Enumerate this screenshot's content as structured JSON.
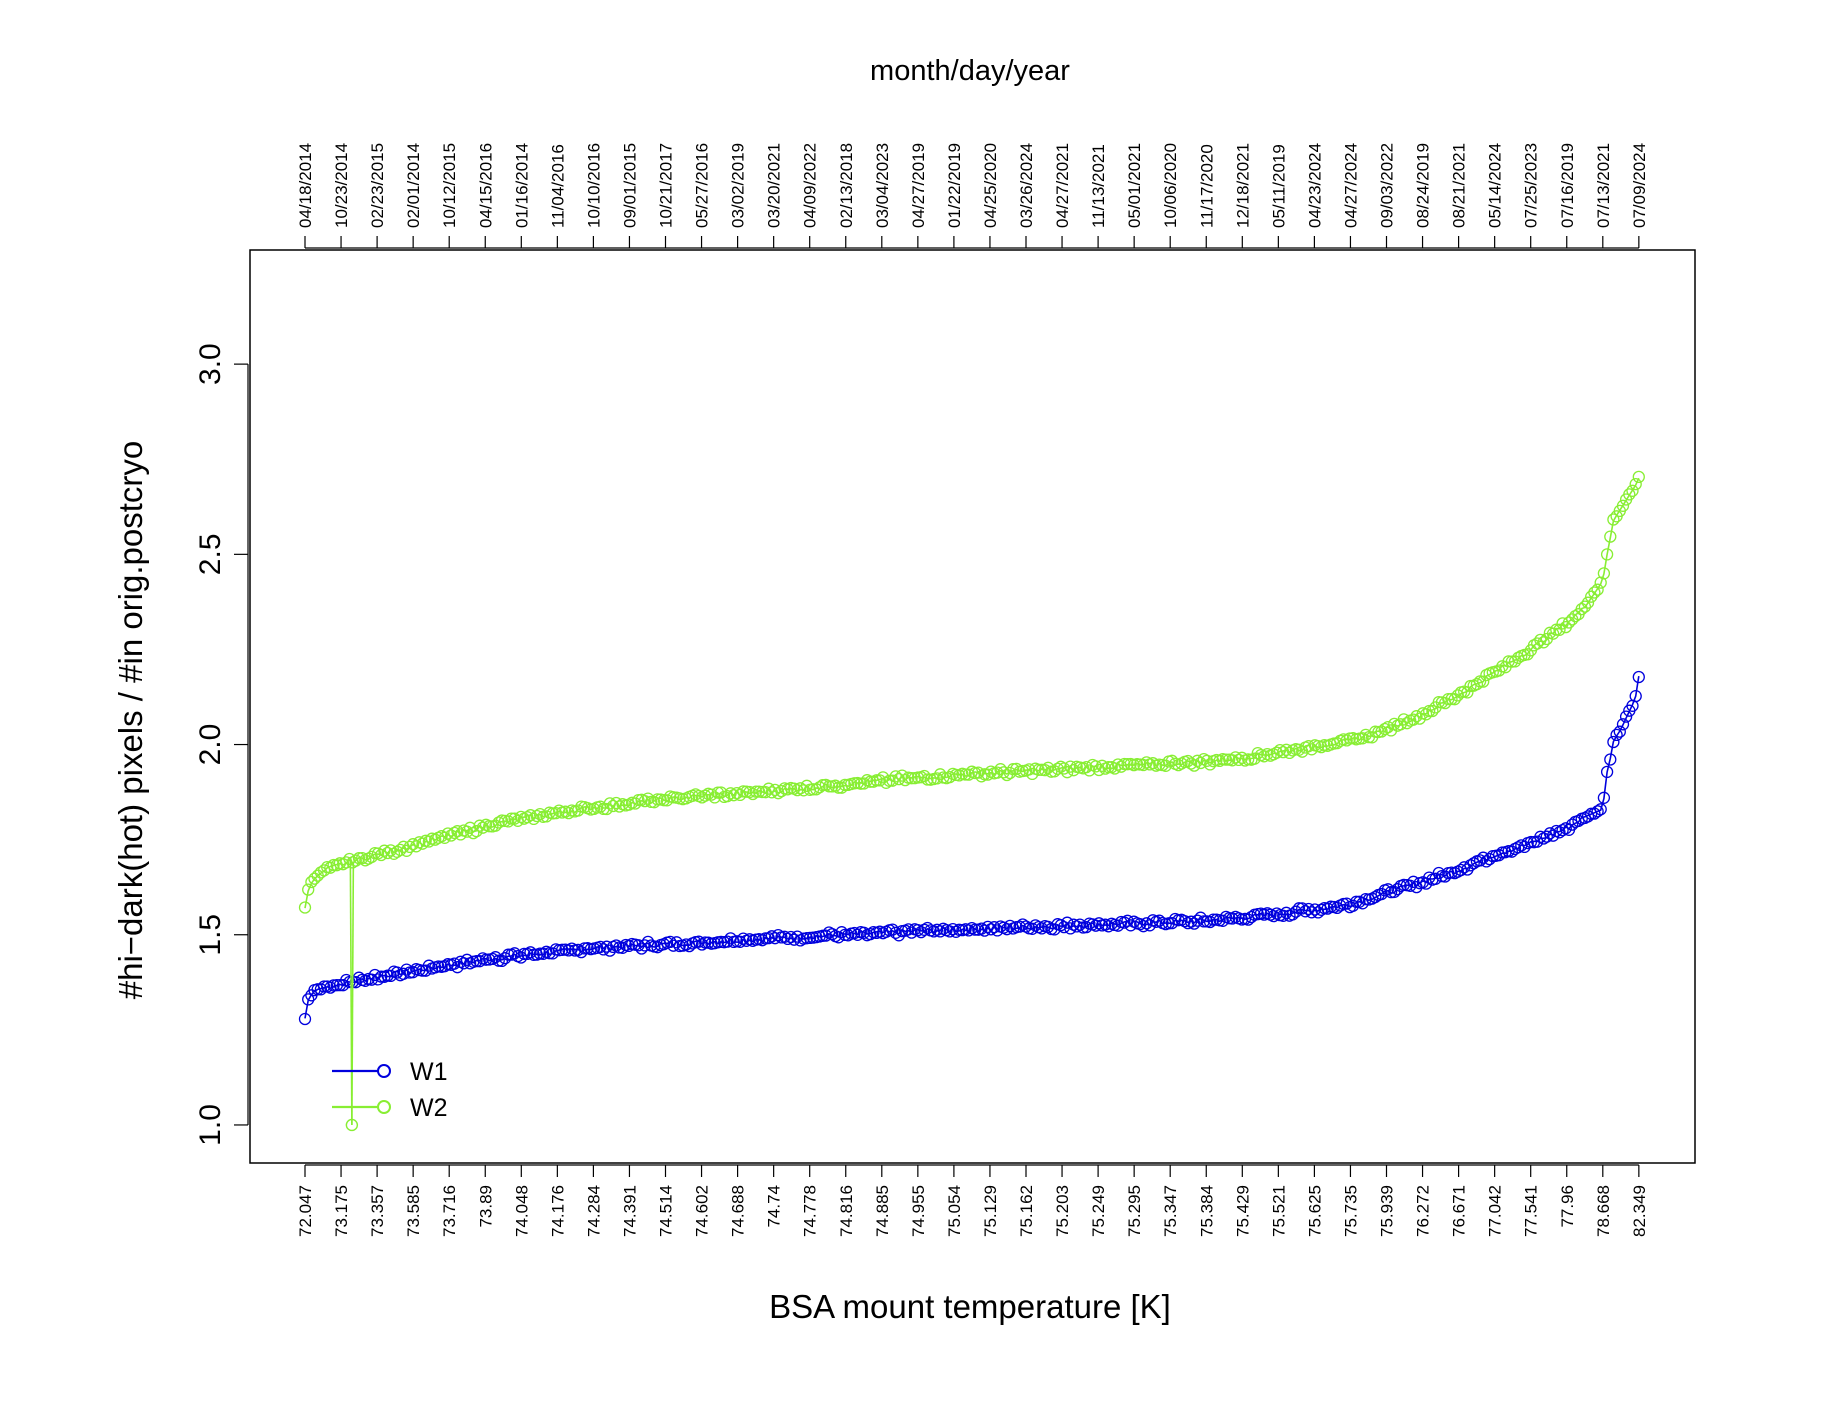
{
  "chart_data": {
    "type": "line",
    "top_axis_label": "month/day/year",
    "xlabel": "BSA mount temperature [K]",
    "ylabel": "#hi−dark(hot) pixels / #in orig.postcryo",
    "ylim": [
      0.9,
      3.3
    ],
    "yticks": [
      "1.0",
      "1.5",
      "2.0",
      "2.5",
      "3.0"
    ],
    "x_tick_labels": [
      "72.047",
      "73.175",
      "73.357",
      "73.585",
      "73.716",
      "73.89",
      "74.048",
      "74.176",
      "74.284",
      "74.391",
      "74.514",
      "74.602",
      "74.688",
      "74.74",
      "74.778",
      "74.816",
      "74.885",
      "74.955",
      "75.054",
      "75.129",
      "75.162",
      "75.203",
      "75.249",
      "75.295",
      "75.347",
      "75.384",
      "75.429",
      "75.521",
      "75.625",
      "75.735",
      "75.939",
      "76.272",
      "76.671",
      "77.042",
      "77.541",
      "77.96",
      "78.668",
      "82.349"
    ],
    "top_tick_labels": [
      "04/18/2014",
      "10/23/2014",
      "02/23/2015",
      "02/01/2014",
      "10/12/2015",
      "04/15/2016",
      "01/16/2014",
      "11/04/2016",
      "10/10/2016",
      "09/01/2015",
      "10/21/2017",
      "05/27/2016",
      "03/02/2019",
      "03/20/2021",
      "04/09/2022",
      "02/13/2018",
      "03/04/2023",
      "04/27/2019",
      "01/22/2019",
      "04/25/2020",
      "03/26/2024",
      "04/27/2021",
      "11/13/2021",
      "05/01/2021",
      "10/06/2020",
      "11/17/2020",
      "12/18/2021",
      "05/11/2019",
      "04/23/2024",
      "04/27/2024",
      "09/03/2022",
      "08/24/2019",
      "08/21/2021",
      "05/14/2024",
      "07/25/2023",
      "07/16/2019",
      "07/13/2021",
      "07/09/2024"
    ],
    "legend": {
      "placement": "bottom-left"
    },
    "grid": false,
    "series": [
      {
        "name": "W1",
        "color": "#0000dd",
        "anchors": [
          [
            0,
            1.28
          ],
          [
            0.05,
            1.32
          ],
          [
            0.15,
            1.34
          ],
          [
            0.3,
            1.355
          ],
          [
            0.5,
            1.36
          ],
          [
            1,
            1.37
          ],
          [
            2,
            1.39
          ],
          [
            3,
            1.405
          ],
          [
            4,
            1.42
          ],
          [
            5,
            1.435
          ],
          [
            6,
            1.445
          ],
          [
            7,
            1.455
          ],
          [
            8,
            1.465
          ],
          [
            9,
            1.47
          ],
          [
            10,
            1.475
          ],
          [
            11,
            1.48
          ],
          [
            12,
            1.485
          ],
          [
            13,
            1.49
          ],
          [
            14,
            1.495
          ],
          [
            15,
            1.5
          ],
          [
            16,
            1.505
          ],
          [
            17,
            1.51
          ],
          [
            18,
            1.513
          ],
          [
            19,
            1.516
          ],
          [
            20,
            1.52
          ],
          [
            21,
            1.523
          ],
          [
            22,
            1.527
          ],
          [
            23,
            1.53
          ],
          [
            24,
            1.533
          ],
          [
            25,
            1.537
          ],
          [
            26,
            1.545
          ],
          [
            27,
            1.555
          ],
          [
            28,
            1.565
          ],
          [
            29,
            1.58
          ],
          [
            30,
            1.61
          ],
          [
            31,
            1.64
          ],
          [
            32,
            1.67
          ],
          [
            33,
            1.71
          ],
          [
            34,
            1.74
          ],
          [
            35,
            1.78
          ],
          [
            35.5,
            1.81
          ],
          [
            36,
            1.83
          ],
          [
            36.1,
            1.92
          ],
          [
            36.2,
            1.96
          ],
          [
            36.3,
            2.01
          ],
          [
            36.5,
            2.04
          ],
          [
            36.7,
            2.08
          ],
          [
            36.9,
            2.12
          ],
          [
            37,
            2.18
          ]
        ]
      },
      {
        "name": "W2",
        "color": "#88ee33",
        "outlier": [
          1.3,
          1.0
        ],
        "anchors": [
          [
            0,
            1.57
          ],
          [
            0.05,
            1.6
          ],
          [
            0.1,
            1.62
          ],
          [
            0.2,
            1.64
          ],
          [
            0.4,
            1.66
          ],
          [
            0.7,
            1.675
          ],
          [
            1,
            1.685
          ],
          [
            2,
            1.71
          ],
          [
            3,
            1.735
          ],
          [
            4,
            1.76
          ],
          [
            5,
            1.785
          ],
          [
            6,
            1.805
          ],
          [
            7,
            1.82
          ],
          [
            8,
            1.835
          ],
          [
            9,
            1.845
          ],
          [
            10,
            1.855
          ],
          [
            11,
            1.865
          ],
          [
            12,
            1.87
          ],
          [
            13,
            1.878
          ],
          [
            14,
            1.886
          ],
          [
            15,
            1.895
          ],
          [
            16,
            1.905
          ],
          [
            17,
            1.913
          ],
          [
            18,
            1.92
          ],
          [
            19,
            1.925
          ],
          [
            20,
            1.93
          ],
          [
            21,
            1.935
          ],
          [
            22,
            1.94
          ],
          [
            23,
            1.945
          ],
          [
            24,
            1.95
          ],
          [
            25,
            1.955
          ],
          [
            26,
            1.965
          ],
          [
            27,
            1.98
          ],
          [
            28,
            1.995
          ],
          [
            29,
            2.01
          ],
          [
            30,
            2.04
          ],
          [
            31,
            2.08
          ],
          [
            32,
            2.13
          ],
          [
            33,
            2.19
          ],
          [
            34,
            2.25
          ],
          [
            35,
            2.32
          ],
          [
            35.5,
            2.36
          ],
          [
            36,
            2.43
          ],
          [
            36.1,
            2.49
          ],
          [
            36.2,
            2.54
          ],
          [
            36.3,
            2.59
          ],
          [
            36.5,
            2.62
          ],
          [
            36.7,
            2.65
          ],
          [
            36.9,
            2.68
          ],
          [
            37,
            2.7
          ]
        ]
      }
    ]
  }
}
